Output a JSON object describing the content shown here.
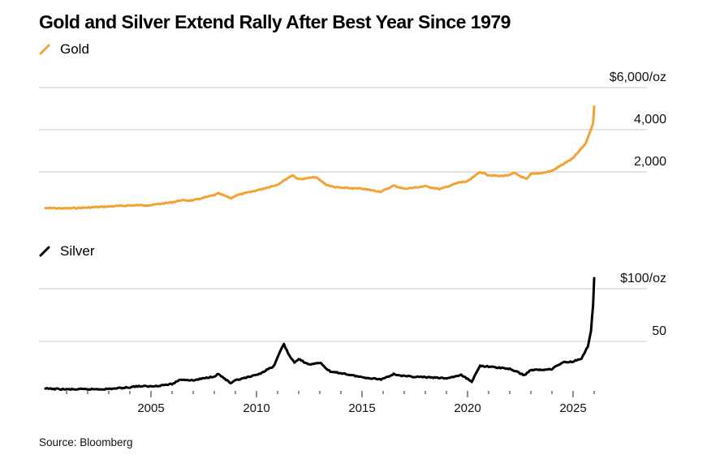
{
  "title": "Gold and Silver Extend Rally After Best Year Since 1979",
  "source": "Source: Bloomberg",
  "colors": {
    "gold": "#f4a233",
    "silver": "#000000",
    "grid": "#d4d4d4"
  },
  "chart_data": [
    {
      "type": "line",
      "title": "Gold",
      "legend": "Gold",
      "legend_placement": "top-left",
      "xlabel": "",
      "ylabel": "",
      "ylim": [
        0,
        6000
      ],
      "xlim": [
        2000,
        2026
      ],
      "yticks": [
        2000,
        4000,
        6000
      ],
      "ytick_labels": [
        "2,000",
        "4,000",
        "$6,000/oz"
      ],
      "grid": true,
      "series": [
        {
          "name": "Gold",
          "x": [
            2000.0,
            2001.0,
            2002.0,
            2003.0,
            2004.0,
            2005.0,
            2006.0,
            2006.4,
            2007.0,
            2008.0,
            2008.2,
            2008.8,
            2009.0,
            2010.0,
            2011.0,
            2011.7,
            2012.0,
            2012.8,
            2013.3,
            2013.6,
            2014.0,
            2015.0,
            2015.9,
            2016.5,
            2017.0,
            2018.0,
            2018.7,
            2019.0,
            2019.6,
            2020.0,
            2020.6,
            2021.0,
            2021.5,
            2022.0,
            2022.2,
            2022.8,
            2023.0,
            2023.5,
            2024.0,
            2024.5,
            2025.0,
            2025.3,
            2025.6,
            2025.8,
            2025.95,
            2026.0
          ],
          "values": [
            285,
            270,
            310,
            360,
            410,
            430,
            560,
            650,
            650,
            900,
            980,
            750,
            880,
            1120,
            1400,
            1850,
            1650,
            1750,
            1400,
            1300,
            1250,
            1200,
            1060,
            1350,
            1200,
            1320,
            1180,
            1290,
            1500,
            1550,
            2000,
            1850,
            1800,
            1850,
            1950,
            1650,
            1900,
            1950,
            2050,
            2350,
            2650,
            3000,
            3350,
            3900,
            4300,
            5100
          ]
        }
      ]
    },
    {
      "type": "line",
      "title": "Silver",
      "legend": "Silver",
      "legend_placement": "top-left",
      "xlabel": "",
      "ylabel": "",
      "ylim": [
        0,
        100
      ],
      "xlim": [
        2000,
        2026
      ],
      "yticks": [
        50,
        100
      ],
      "ytick_labels": [
        "50",
        "$100/oz"
      ],
      "xticks": [
        2005,
        2010,
        2015,
        2020,
        2025
      ],
      "xtick_labels": [
        "2005",
        "2010",
        "2015",
        "2020",
        "2025"
      ],
      "grid": true,
      "series": [
        {
          "name": "Silver",
          "x": [
            2000.0,
            2001.0,
            2002.0,
            2003.0,
            2004.0,
            2004.3,
            2005.0,
            2006.0,
            2006.4,
            2007.0,
            2008.0,
            2008.2,
            2008.8,
            2009.0,
            2010.0,
            2010.8,
            2011.3,
            2011.5,
            2011.8,
            2012.0,
            2012.5,
            2013.0,
            2013.5,
            2014.0,
            2015.0,
            2015.9,
            2016.5,
            2017.0,
            2018.0,
            2019.0,
            2019.7,
            2020.2,
            2020.6,
            2021.0,
            2021.5,
            2022.0,
            2022.7,
            2023.0,
            2023.5,
            2024.0,
            2024.5,
            2025.0,
            2025.4,
            2025.7,
            2025.85,
            2025.95,
            2026.0
          ],
          "values": [
            5.2,
            4.5,
            4.6,
            4.9,
            6.5,
            7.5,
            7.3,
            9.5,
            14,
            13,
            17,
            19,
            10,
            13,
            18,
            26,
            48,
            38,
            30,
            33,
            28,
            30,
            21,
            20,
            16,
            14,
            19,
            17,
            16,
            15,
            18,
            12,
            27,
            26,
            25,
            24,
            18,
            23,
            23,
            24,
            30,
            31,
            34,
            45,
            60,
            85,
            110
          ]
        }
      ]
    }
  ]
}
